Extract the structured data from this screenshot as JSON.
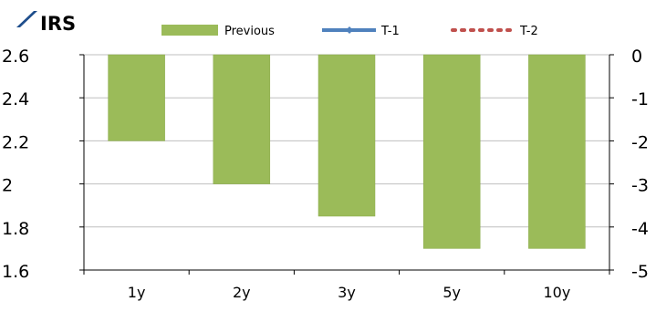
{
  "title": "IRS",
  "colors": {
    "bar": "#9BBB59",
    "bar_edge": "#8AAA4A",
    "t1": "#4F81BD",
    "t2": "#C0504D",
    "axis": "#000000",
    "title_icon": "#1F4E8C"
  },
  "chart_data": {
    "type": "bar",
    "categories": [
      "1y",
      "2y",
      "3y",
      "5y",
      "10y"
    ],
    "series": [
      {
        "name": "Previous",
        "values": [
          2.2,
          2.0,
          1.85,
          1.7,
          1.7
        ]
      }
    ],
    "legend": [
      "Previous",
      "T-1",
      "T-2"
    ],
    "legend_position": "top",
    "ylim": [
      1.6,
      2.6
    ],
    "yticks": [
      "2.6",
      "2.4",
      "2.2",
      "2",
      "1.8",
      "1.6"
    ],
    "y2ticks": [
      "0",
      "-1",
      "-2",
      "-3",
      "-4",
      "-5"
    ],
    "grid": true,
    "bars_hang_from_top": true
  }
}
